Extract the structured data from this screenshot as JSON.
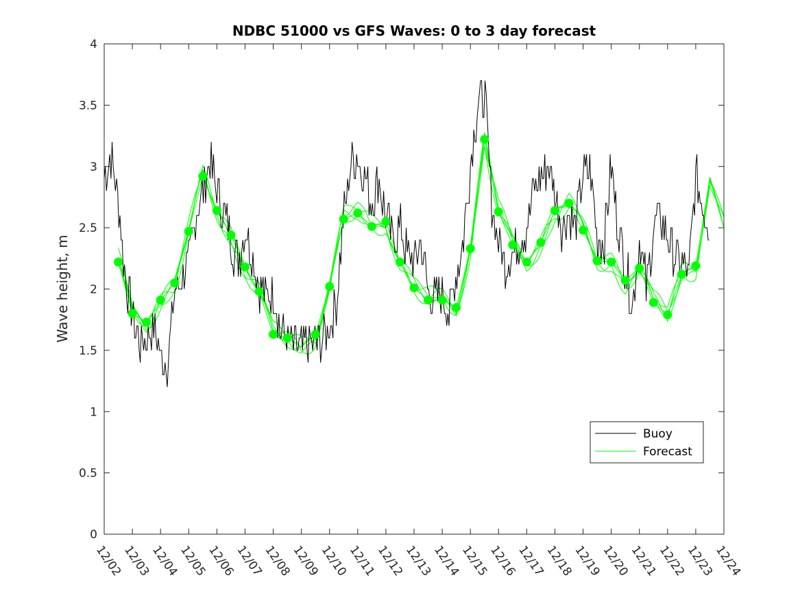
{
  "chart_data": {
    "type": "line",
    "title": "NDBC 51000 vs GFS Waves: 0 to 3 day forecast",
    "xlabel": "",
    "ylabel": "Wave height, m",
    "ylim": [
      0,
      4
    ],
    "yticks": [
      "0",
      "0.5",
      "1",
      "1.5",
      "2",
      "2.5",
      "3",
      "3.5",
      "4"
    ],
    "xlim": [
      0,
      22
    ],
    "xticks": [
      "12/02",
      "12/03",
      "12/04",
      "12/05",
      "12/06",
      "12/07",
      "12/08",
      "12/09",
      "12/10",
      "12/11",
      "12/12",
      "12/13",
      "12/14",
      "12/15",
      "12/16",
      "12/17",
      "12/18",
      "12/19",
      "12/20",
      "12/21",
      "12/22",
      "12/23",
      "12/24"
    ],
    "legend": {
      "position": "bottom-right",
      "entries": [
        "Buoy",
        "Forecast"
      ]
    },
    "colors": {
      "buoy": "#000000",
      "forecast": "#00ff00"
    },
    "series": [
      {
        "name": "Buoy",
        "x": [
          0,
          0.25,
          0.5,
          0.75,
          1.0,
          1.25,
          1.5,
          1.75,
          2.0,
          2.25,
          2.5,
          2.75,
          3.0,
          3.25,
          3.5,
          3.75,
          4.0,
          4.25,
          4.5,
          4.75,
          5.0,
          5.25,
          5.5,
          5.75,
          6.0,
          6.25,
          6.5,
          6.75,
          7.0,
          7.25,
          7.5,
          7.75,
          8.0,
          8.25,
          8.5,
          8.75,
          9.0,
          9.25,
          9.5,
          9.75,
          10.0,
          10.25,
          10.5,
          10.75,
          11.0,
          11.25,
          11.5,
          11.75,
          12.0,
          12.25,
          12.5,
          12.75,
          13.0,
          13.25,
          13.5,
          13.75,
          14.0,
          14.25,
          14.5,
          14.75,
          15.0,
          15.25,
          15.5,
          15.75,
          16.0,
          16.25,
          16.5,
          16.75,
          17.0,
          17.25,
          17.5,
          17.75,
          18.0,
          18.25,
          18.5,
          18.75,
          19.0,
          19.25,
          19.5,
          19.75,
          20.0,
          20.25,
          20.5,
          20.75,
          21.0,
          21.25,
          21.5
        ],
        "y": [
          2.9,
          3.1,
          2.7,
          2.1,
          1.8,
          1.55,
          1.6,
          1.7,
          1.45,
          1.4,
          1.95,
          2.1,
          2.2,
          2.6,
          2.8,
          3.05,
          2.8,
          2.6,
          2.4,
          2.2,
          2.5,
          2.3,
          2.0,
          1.95,
          2.0,
          1.65,
          1.6,
          1.55,
          1.5,
          1.55,
          1.55,
          1.6,
          1.7,
          1.9,
          2.6,
          3.0,
          3.1,
          2.9,
          2.7,
          2.9,
          2.6,
          2.4,
          2.5,
          2.3,
          2.2,
          2.4,
          2.0,
          1.9,
          2.0,
          1.8,
          2.1,
          2.4,
          3.0,
          3.5,
          3.6,
          2.7,
          2.4,
          2.2,
          2.3,
          2.4,
          2.5,
          2.8,
          2.9,
          3.0,
          2.8,
          2.5,
          2.6,
          2.5,
          2.9,
          3.0,
          2.4,
          2.4,
          3.0,
          2.5,
          2.2,
          1.9,
          2.4,
          2.0,
          2.5,
          2.6,
          2.4,
          2.3,
          2.2,
          2.1,
          2.9,
          2.7,
          2.5
        ]
      },
      {
        "name": "Forecast",
        "x": [
          0.5,
          1.0,
          1.5,
          2.0,
          2.5,
          3.0,
          3.5,
          4.0,
          4.5,
          5.0,
          5.5,
          6.0,
          6.5,
          7.0,
          7.5,
          8.0,
          8.5,
          9.0,
          9.5,
          10.0,
          10.5,
          11.0,
          11.5,
          12.0,
          12.5,
          13.0,
          13.5,
          14.0,
          14.5,
          15.0,
          15.5,
          16.0,
          16.5,
          17.0,
          17.5,
          18.0,
          18.5,
          19.0,
          19.5,
          20.0,
          20.5,
          21.0,
          21.5,
          22.0
        ],
        "y": [
          2.22,
          1.8,
          1.73,
          1.91,
          2.05,
          2.47,
          2.92,
          2.64,
          2.44,
          2.18,
          1.98,
          1.63,
          1.6,
          1.53,
          1.63,
          2.02,
          2.57,
          2.62,
          2.51,
          2.55,
          2.22,
          2.01,
          1.91,
          1.91,
          1.85,
          2.33,
          3.22,
          2.63,
          2.36,
          2.22,
          2.38,
          2.64,
          2.7,
          2.48,
          2.23,
          2.22,
          2.07,
          2.17,
          1.89,
          1.79,
          2.12,
          2.19,
          2.9,
          2.5
        ]
      }
    ],
    "forecast_markers": {
      "x": [
        0.5,
        1.0,
        1.5,
        2.0,
        2.5,
        3.0,
        3.5,
        4.0,
        4.5,
        5.0,
        5.5,
        6.0,
        6.5,
        7.5,
        8.0,
        8.5,
        9.0,
        9.5,
        10.0,
        10.5,
        11.0,
        11.5,
        12.0,
        12.5,
        13.0,
        13.5,
        14.0,
        14.5,
        15.0,
        15.5,
        16.0,
        16.5,
        17.0,
        17.5,
        18.0,
        18.5,
        19.0,
        19.5,
        20.0,
        20.5,
        21.0
      ],
      "y": [
        2.22,
        1.8,
        1.73,
        1.91,
        2.05,
        2.47,
        2.92,
        2.64,
        2.44,
        2.18,
        1.98,
        1.63,
        1.6,
        1.63,
        2.02,
        2.57,
        2.62,
        2.51,
        2.55,
        2.22,
        2.01,
        1.91,
        1.91,
        1.85,
        2.33,
        3.22,
        2.63,
        2.36,
        2.22,
        2.38,
        2.64,
        2.7,
        2.48,
        2.23,
        2.22,
        2.07,
        2.17,
        1.89,
        1.79,
        2.12,
        2.19
      ]
    }
  }
}
